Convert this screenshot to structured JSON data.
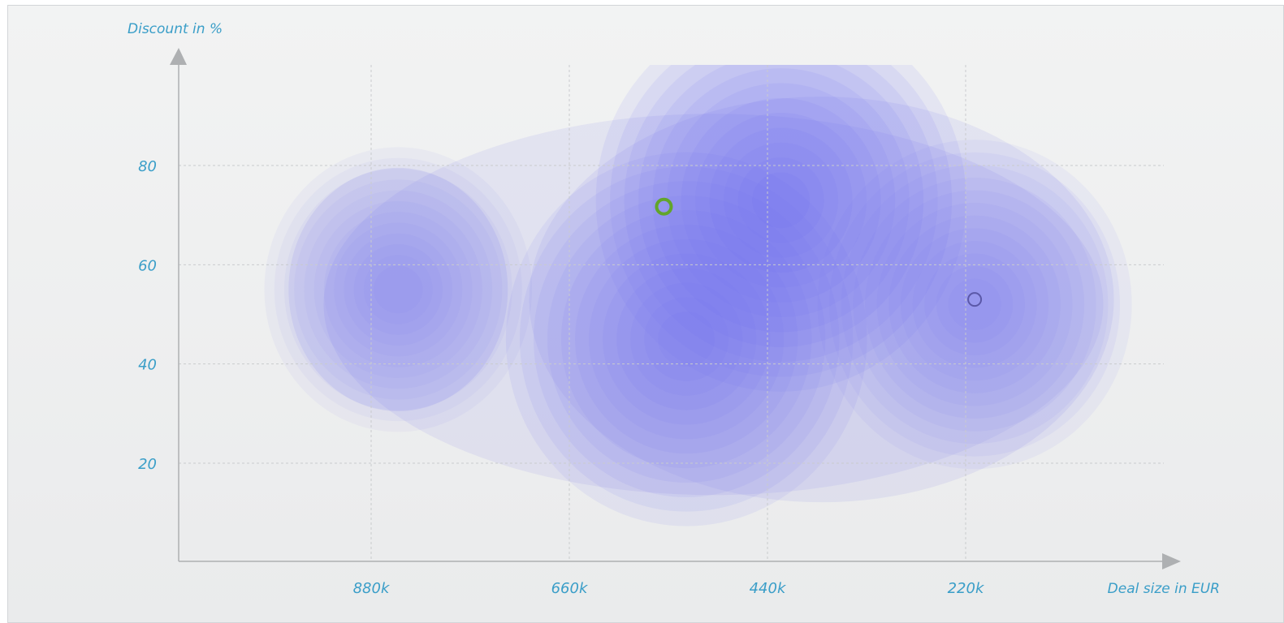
{
  "chart_data": {
    "type": "heatmap",
    "subtype": "density contour",
    "x_reversed": true,
    "xlabel": "Deal size in EUR",
    "ylabel": "Discount in %",
    "x_ticks": [
      {
        "value": 880000,
        "label": "880k"
      },
      {
        "value": 660000,
        "label": "660k"
      },
      {
        "value": 440000,
        "label": "440k"
      },
      {
        "value": 220000,
        "label": "220k"
      }
    ],
    "y_ticks": [
      {
        "value": 80,
        "label": "80"
      },
      {
        "value": 60,
        "label": "60"
      },
      {
        "value": 40,
        "label": "40"
      },
      {
        "value": 20,
        "label": "20"
      }
    ],
    "xlim": [
      1095000,
      40000
    ],
    "ylim": [
      0,
      100
    ],
    "grid": true,
    "density_color": "#6f6ff0",
    "density_peaks": [
      {
        "x": 425000,
        "y": 73,
        "weight": 1.0
      },
      {
        "x": 530000,
        "y": 45,
        "weight": 0.95
      },
      {
        "x": 210000,
        "y": 52,
        "weight": 0.7
      },
      {
        "x": 850000,
        "y": 55,
        "weight": 0.45
      }
    ],
    "markers": [
      {
        "x": 555000,
        "y": 71.7,
        "color": "#62a52b"
      },
      {
        "x": 210000,
        "y": 53,
        "color": "#5b58a8"
      }
    ]
  },
  "colors": {
    "axis": "#aeb0b2",
    "grid": "#c9cbcd",
    "label": "#3a9ec8"
  }
}
